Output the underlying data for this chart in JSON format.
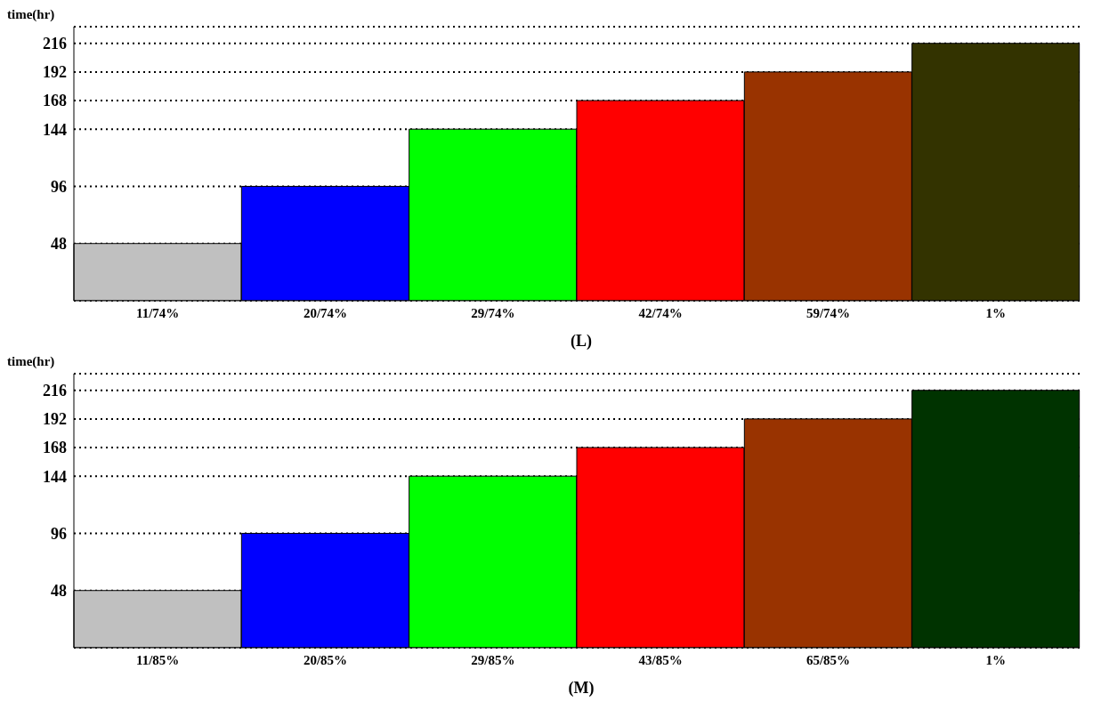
{
  "chart_data": [
    {
      "type": "bar",
      "ylabel": "time(hr)",
      "xlabel": "(L)",
      "categories": [
        "11/74%",
        "20/74%",
        "29/74%",
        "42/74%",
        "59/74%",
        "1%"
      ],
      "values": [
        48,
        96,
        144,
        168,
        192,
        216
      ],
      "colors": [
        "#c0c0c0",
        "#0000ff",
        "#00ff00",
        "#ff0000",
        "#993300",
        "#333300"
      ],
      "ylim": [
        0,
        230
      ],
      "yticks": [
        48,
        96,
        144,
        168,
        192,
        216
      ],
      "grid": "y"
    },
    {
      "type": "bar",
      "ylabel": "time(hr)",
      "xlabel": "(M)",
      "categories": [
        "11/85%",
        "20/85%",
        "29/85%",
        "43/85%",
        "65/85%",
        "1%"
      ],
      "values": [
        48,
        96,
        144,
        168,
        192,
        216
      ],
      "colors": [
        "#c0c0c0",
        "#0000ff",
        "#00ff00",
        "#ff0000",
        "#993300",
        "#003300"
      ],
      "ylim": [
        0,
        230
      ],
      "yticks": [
        48,
        96,
        144,
        168,
        192,
        216
      ],
      "grid": "y"
    }
  ]
}
